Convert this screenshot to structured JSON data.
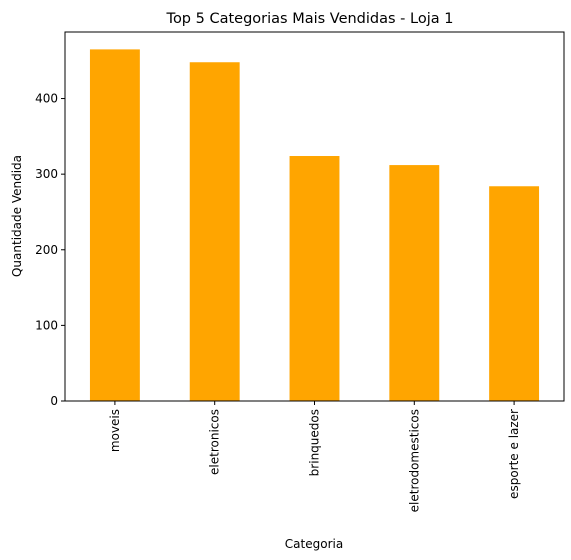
{
  "chart_data": {
    "type": "bar",
    "title": "Top 5 Categorias Mais Vendidas - Loja 1",
    "xlabel": "Categoria",
    "ylabel": "Quantidade Vendida",
    "categories": [
      "moveis",
      "eletronicos",
      "brinquedos",
      "eletrodomesticos",
      "esporte e lazer"
    ],
    "values": [
      465,
      448,
      324,
      312,
      284
    ],
    "ylim": [
      0,
      488
    ],
    "yticks": [
      0,
      100,
      200,
      300,
      400
    ],
    "bar_color": "#FFA500",
    "grid": false,
    "legend": "none"
  }
}
